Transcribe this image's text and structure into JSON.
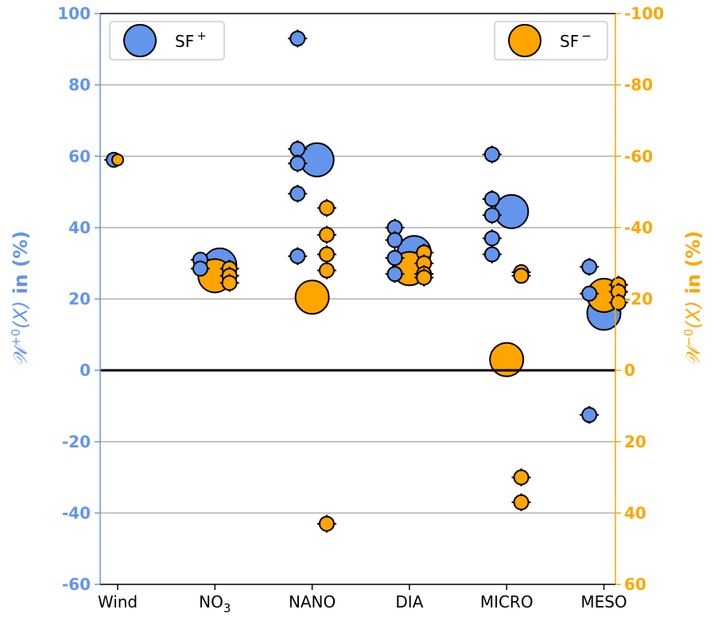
{
  "chart_data": {
    "type": "scatter",
    "categories": [
      "Wind",
      "NO",
      "NANO",
      "DIA",
      "MICRO",
      "MESO"
    ],
    "category_subscripts": [
      "",
      "3",
      "",
      "",
      "",
      ""
    ],
    "ylim": [
      -60,
      100
    ],
    "yticks": [
      100,
      80,
      60,
      40,
      20,
      0,
      -20,
      -40,
      -60
    ],
    "right_yticks": [
      "-100",
      "-80",
      "-60",
      "-40",
      "-20",
      "0",
      "20",
      "40",
      "60"
    ],
    "grid": "horizontal",
    "ylabel_left": {
      "prefix": "𝒲",
      "sup": "+0",
      "arg": "(X)",
      "suffix": " in (%)"
    },
    "ylabel_right": {
      "prefix": "𝒲",
      "sup": "−0",
      "arg": "(X)",
      "suffix": " in (%)"
    },
    "colors": {
      "plus": "#6495ED",
      "minus": "#FFA500",
      "axis_left": "#6495ED",
      "axis_right": "#FFA500",
      "grid": "#b0b0b0"
    },
    "legend": [
      {
        "label": "SF",
        "sup": "+",
        "color": "#6495ED",
        "placement": "top-left"
      },
      {
        "label": "SF",
        "sup": "−",
        "color": "#FFA500",
        "placement": "top-right"
      }
    ],
    "series": [
      {
        "name": "SF+",
        "color": "#6495ED",
        "points": [
          {
            "cat": 0,
            "dx": -0.04,
            "y": 59,
            "size": "small",
            "err": 1
          },
          {
            "cat": 1,
            "dx": -0.15,
            "y": 31,
            "size": "small",
            "err": 1.5
          },
          {
            "cat": 1,
            "dx": -0.15,
            "y": 28.5,
            "size": "small",
            "err": 1.5
          },
          {
            "cat": 1,
            "dx": 0.05,
            "y": 29.5,
            "size": "large",
            "err": 0
          },
          {
            "cat": 2,
            "dx": -0.15,
            "y": 93,
            "size": "small",
            "err": 2.5
          },
          {
            "cat": 2,
            "dx": -0.15,
            "y": 62,
            "size": "small",
            "err": 2.5
          },
          {
            "cat": 2,
            "dx": -0.15,
            "y": 58,
            "size": "small",
            "err": 2.5
          },
          {
            "cat": 2,
            "dx": 0.05,
            "y": 59,
            "size": "large",
            "err": 0
          },
          {
            "cat": 2,
            "dx": -0.15,
            "y": 49.5,
            "size": "small",
            "err": 2.5
          },
          {
            "cat": 2,
            "dx": -0.15,
            "y": 32,
            "size": "small",
            "err": 2.5
          },
          {
            "cat": 3,
            "dx": -0.15,
            "y": 40,
            "size": "small",
            "err": 2.5
          },
          {
            "cat": 3,
            "dx": -0.15,
            "y": 36.5,
            "size": "small",
            "err": 2.5
          },
          {
            "cat": 3,
            "dx": 0.05,
            "y": 33,
            "size": "large",
            "err": 0
          },
          {
            "cat": 3,
            "dx": -0.15,
            "y": 31.5,
            "size": "small",
            "err": 2.5
          },
          {
            "cat": 3,
            "dx": -0.15,
            "y": 27,
            "size": "small",
            "err": 2.5
          },
          {
            "cat": 4,
            "dx": -0.15,
            "y": 60.5,
            "size": "small",
            "err": 2.5
          },
          {
            "cat": 4,
            "dx": -0.15,
            "y": 48,
            "size": "small",
            "err": 2.5
          },
          {
            "cat": 4,
            "dx": -0.15,
            "y": 43.5,
            "size": "small",
            "err": 2.5
          },
          {
            "cat": 4,
            "dx": 0.05,
            "y": 44.5,
            "size": "large",
            "err": 0
          },
          {
            "cat": 4,
            "dx": -0.15,
            "y": 37,
            "size": "small",
            "err": 2.5
          },
          {
            "cat": 4,
            "dx": -0.15,
            "y": 32.5,
            "size": "small",
            "err": 2.5
          },
          {
            "cat": 5,
            "dx": -0.15,
            "y": 29,
            "size": "small",
            "err": 2.5
          },
          {
            "cat": 5,
            "dx": -0.15,
            "y": 21.5,
            "size": "small",
            "err": 1
          },
          {
            "cat": 5,
            "dx": 0.0,
            "y": 16,
            "size": "large",
            "err": 0
          },
          {
            "cat": 5,
            "dx": -0.15,
            "y": -12.5,
            "size": "small",
            "err": 2.5
          }
        ]
      },
      {
        "name": "SF−",
        "color": "#FFA500",
        "points": [
          {
            "cat": 0,
            "dx": 0.0,
            "y": 59,
            "size": "tiny",
            "err": 0
          },
          {
            "cat": 1,
            "dx": 0.0,
            "y": 26.5,
            "size": "large",
            "err": 0
          },
          {
            "cat": 1,
            "dx": 0.15,
            "y": 28.5,
            "size": "small",
            "err": 2.5
          },
          {
            "cat": 1,
            "dx": 0.15,
            "y": 26.5,
            "size": "small",
            "err": 2.5
          },
          {
            "cat": 1,
            "dx": 0.15,
            "y": 24.5,
            "size": "small",
            "err": 2.5
          },
          {
            "cat": 2,
            "dx": 0.15,
            "y": 45.5,
            "size": "small",
            "err": 2.5
          },
          {
            "cat": 2,
            "dx": 0.15,
            "y": 38,
            "size": "small",
            "err": 2.5
          },
          {
            "cat": 2,
            "dx": 0.15,
            "y": 32.5,
            "size": "small",
            "err": 2.5
          },
          {
            "cat": 2,
            "dx": 0.15,
            "y": 28,
            "size": "small",
            "err": 2.5
          },
          {
            "cat": 2,
            "dx": 0.0,
            "y": 20.5,
            "size": "large",
            "err": 0
          },
          {
            "cat": 2,
            "dx": 0.15,
            "y": -43,
            "size": "small",
            "err": 2.5
          },
          {
            "cat": 3,
            "dx": 0.15,
            "y": 33,
            "size": "small",
            "err": 2.5
          },
          {
            "cat": 3,
            "dx": 0.15,
            "y": 30,
            "size": "small",
            "err": 2.5
          },
          {
            "cat": 3,
            "dx": 0.0,
            "y": 28.5,
            "size": "large",
            "err": 0
          },
          {
            "cat": 3,
            "dx": 0.15,
            "y": 27,
            "size": "small",
            "err": 2.5
          },
          {
            "cat": 3,
            "dx": 0.15,
            "y": 26,
            "size": "small",
            "err": 2.5
          },
          {
            "cat": 4,
            "dx": 0.15,
            "y": 27.5,
            "size": "small",
            "err": 1.5
          },
          {
            "cat": 4,
            "dx": 0.15,
            "y": 26.5,
            "size": "small",
            "err": 1.5
          },
          {
            "cat": 4,
            "dx": 0.0,
            "y": 3,
            "size": "large",
            "err": 0
          },
          {
            "cat": 4,
            "dx": 0.15,
            "y": -30,
            "size": "small",
            "err": 2.5
          },
          {
            "cat": 4,
            "dx": 0.15,
            "y": -37,
            "size": "small",
            "err": 2.5
          },
          {
            "cat": 5,
            "dx": 0.15,
            "y": 24,
            "size": "small",
            "err": 2.5
          },
          {
            "cat": 5,
            "dx": 0.15,
            "y": 22,
            "size": "small",
            "err": 2.5
          },
          {
            "cat": 5,
            "dx": 0.0,
            "y": 21,
            "size": "large",
            "err": 0
          },
          {
            "cat": 5,
            "dx": 0.15,
            "y": 19,
            "size": "small",
            "err": 2.5
          }
        ]
      }
    ]
  }
}
